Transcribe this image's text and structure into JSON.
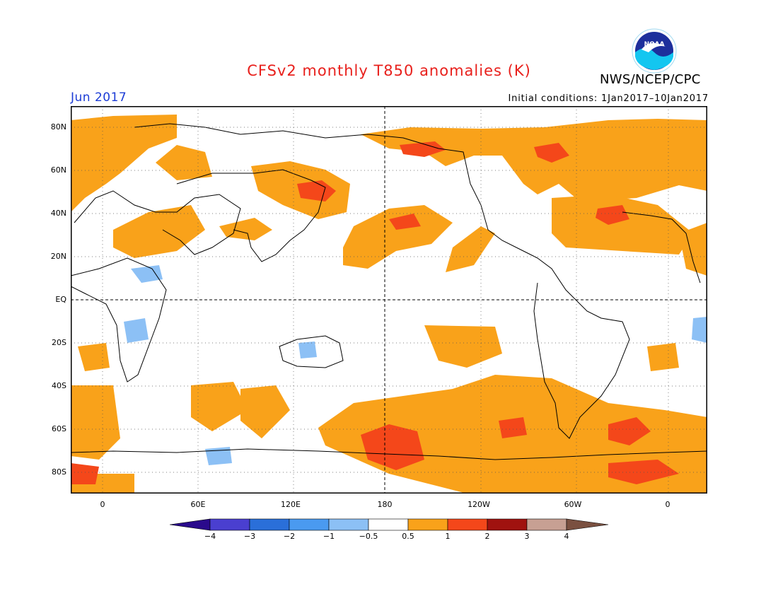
{
  "title": "CFSv2 monthly T850 anomalies (K)",
  "period": "Jun 2017",
  "initial_conditions": "Initial conditions: 1Jan2017–10Jan2017",
  "agency": "NWS/NCEP/CPC",
  "logo_text": "NOAA",
  "lat_labels": [
    "80N",
    "60N",
    "40N",
    "20N",
    "EQ",
    "20S",
    "40S",
    "60S",
    "80S"
  ],
  "lon_labels": [
    "0",
    "60E",
    "120E",
    "180",
    "120W",
    "60W",
    "0"
  ],
  "colorbar": {
    "labels": [
      "−4",
      "−3",
      "−2",
      "−1",
      "−0.5",
      "0.5",
      "1",
      "2",
      "3",
      "4"
    ],
    "colors": [
      "#2a0a8c",
      "#4a3fd0",
      "#2a6fd9",
      "#4a9af0",
      "#8cc0f5",
      "#ffffff",
      "#f9a21a",
      "#f4471a",
      "#a0120f",
      "#c7a093",
      "#7a5040"
    ]
  },
  "colors": {
    "title": "#e8201c",
    "period": "#1c3cd6",
    "warm1": "#f9a21a",
    "warm2": "#f4471a",
    "cool1": "#8cc0f5"
  }
}
